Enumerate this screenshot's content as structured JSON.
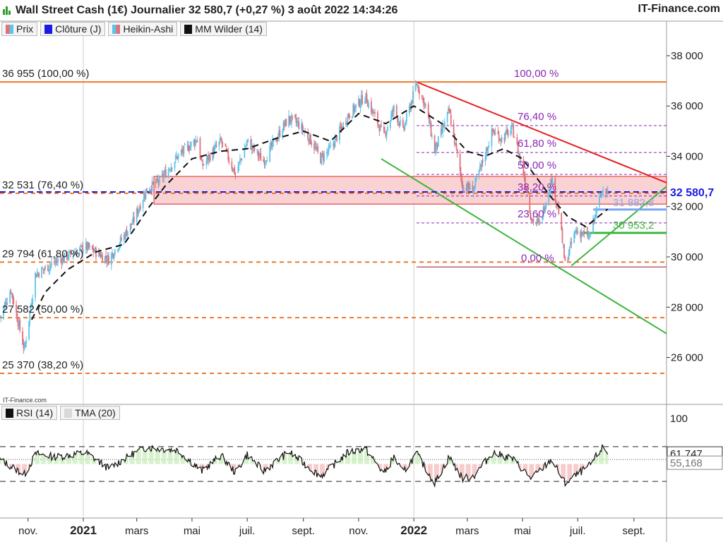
{
  "header": {
    "title": "Wall Street Cash (1€) Journalier 32 580,7 (+0,27 %) 3 août 2022 14:34:26",
    "brand": "IT-Finance.com",
    "small_brand": "IT-Finance.com"
  },
  "legend": [
    {
      "label": "Prix",
      "icon": "price-candles-icon"
    },
    {
      "label": "Clôture (J)",
      "icon": "close-line-icon"
    },
    {
      "label": "Heikin-Ashi",
      "icon": "heikin-ashi-icon"
    },
    {
      "label": "MM Wilder (14)",
      "icon": "wilder-ma-icon"
    }
  ],
  "indicator_legend": [
    {
      "label": "RSI (14)",
      "icon": "rsi-icon"
    },
    {
      "label": "TMA (20)",
      "icon": "tma-icon"
    }
  ],
  "colors": {
    "up": "#5ec3e8",
    "down": "#e0707a",
    "close_line": "#1a1ae6",
    "fib_orange": "#f07828",
    "resistance_red": "#e62020",
    "support_green": "#3cb43c",
    "fib_purple": "#8c28b4",
    "zone_fill": "#f8c8c8"
  },
  "chart_data": [
    {
      "type": "candlestick",
      "title": "Wall Street Cash (1€) Journalier",
      "ylim": [
        24500,
        38700
      ],
      "y_ticks": [
        26000,
        28000,
        30000,
        32000,
        34000,
        36000,
        38000
      ],
      "y_tick_labels": [
        "26 000",
        "28 000",
        "30 000",
        "32 000",
        "34 000",
        "36 000",
        "38 000"
      ],
      "x_labels": [
        "nov.",
        "2021",
        "mars",
        "mai",
        "juil.",
        "sept.",
        "nov.",
        "2022",
        "mars",
        "mai",
        "juil.",
        "sept."
      ],
      "x_label_dates": [
        "2020-11-01",
        "2021-01-01",
        "2021-03-01",
        "2021-05-01",
        "2021-07-01",
        "2021-09-01",
        "2021-11-01",
        "2022-01-01",
        "2022-03-01",
        "2022-05-01",
        "2022-07-01",
        "2022-09-01"
      ],
      "x_range": [
        "2020-10-01",
        "2022-10-07"
      ],
      "last_price": 32580.7,
      "last_price_label": "32 580,7",
      "price_path": [
        [
          "2020-10-01",
          27600
        ],
        [
          "2020-10-13",
          28700
        ],
        [
          "2020-10-28",
          26300
        ],
        [
          "2020-11-09",
          29300
        ],
        [
          "2020-12-01",
          29800
        ],
        [
          "2021-01-04",
          30400
        ],
        [
          "2021-01-29",
          29900
        ],
        [
          "2021-02-25",
          31400
        ],
        [
          "2021-03-12",
          32700
        ],
        [
          "2021-03-26",
          33000
        ],
        [
          "2021-04-15",
          34000
        ],
        [
          "2021-05-07",
          34700
        ],
        [
          "2021-05-12",
          33600
        ],
        [
          "2021-06-02",
          34600
        ],
        [
          "2021-06-18",
          33300
        ],
        [
          "2021-07-01",
          34600
        ],
        [
          "2021-07-19",
          33800
        ],
        [
          "2021-08-10",
          35200
        ],
        [
          "2021-08-16",
          35500
        ],
        [
          "2021-08-26",
          35300
        ],
        [
          "2021-09-10",
          34600
        ],
        [
          "2021-09-20",
          33900
        ],
        [
          "2021-10-01",
          34300
        ],
        [
          "2021-10-20",
          35600
        ],
        [
          "2021-11-08",
          36400
        ],
        [
          "2021-11-29",
          34800
        ],
        [
          "2021-12-10",
          35900
        ],
        [
          "2021-12-20",
          35000
        ],
        [
          "2022-01-04",
          36900
        ],
        [
          "2022-01-15",
          35900
        ],
        [
          "2022-01-24",
          34200
        ],
        [
          "2022-02-09",
          35800
        ],
        [
          "2022-02-24",
          32800
        ],
        [
          "2022-03-08",
          32700
        ],
        [
          "2022-03-29",
          35000
        ],
        [
          "2022-04-08",
          34700
        ],
        [
          "2022-04-20",
          35100
        ],
        [
          "2022-05-03",
          33200
        ],
        [
          "2022-05-11",
          31500
        ],
        [
          "2022-05-20",
          31300
        ],
        [
          "2022-06-02",
          33100
        ],
        [
          "2022-06-10",
          31800
        ],
        [
          "2022-06-17",
          29700
        ],
        [
          "2022-06-28",
          31000
        ],
        [
          "2022-07-01",
          31000
        ],
        [
          "2022-07-14",
          30800
        ],
        [
          "2022-07-29",
          32800
        ],
        [
          "2022-08-03",
          32580
        ]
      ],
      "wilder_ma_path": [
        [
          "2020-11-05",
          27500
        ],
        [
          "2020-11-20",
          28600
        ],
        [
          "2020-12-15",
          29500
        ],
        [
          "2021-01-15",
          30200
        ],
        [
          "2021-02-15",
          30500
        ],
        [
          "2021-03-15",
          32000
        ],
        [
          "2021-04-01",
          32800
        ],
        [
          "2021-05-01",
          33900
        ],
        [
          "2021-06-01",
          34200
        ],
        [
          "2021-07-01",
          34300
        ],
        [
          "2021-08-01",
          34700
        ],
        [
          "2021-09-01",
          35000
        ],
        [
          "2021-10-01",
          34600
        ],
        [
          "2021-11-01",
          35700
        ],
        [
          "2021-12-01",
          35300
        ],
        [
          "2022-01-01",
          36000
        ],
        [
          "2022-02-01",
          35300
        ],
        [
          "2022-03-01",
          34200
        ],
        [
          "2022-03-20",
          34000
        ],
        [
          "2022-04-10",
          34300
        ],
        [
          "2022-05-01",
          33900
        ],
        [
          "2022-06-01",
          32400
        ],
        [
          "2022-06-20",
          31600
        ],
        [
          "2022-07-10",
          31200
        ],
        [
          "2022-08-03",
          31900
        ]
      ],
      "fibonacci_levels": [
        {
          "value": 36955,
          "label": "36 955 (100,00 %)",
          "pct_label": "100,00 %"
        },
        {
          "value": 32531,
          "label": "32 531 (76,40 %)",
          "pct_label": "76,40 %"
        },
        {
          "value": 29794,
          "label": "29 794 (61,80 %)",
          "pct_label": "61,80 %"
        },
        {
          "value": 27582,
          "label": "27 582 (50,00 %)",
          "pct_label": "50,00 %"
        },
        {
          "value": 25370,
          "label": "25 370 (38,20 %)",
          "pct_label": "38,20 %"
        }
      ],
      "retracement_levels": [
        {
          "pct": "100,00 %",
          "value": 36955
        },
        {
          "pct": "76,40 %",
          "value": 35220
        },
        {
          "pct": "61,80 %",
          "value": 34150
        },
        {
          "pct": "50,00 %",
          "value": 33280
        },
        {
          "pct": "38,20 %",
          "value": 32420
        },
        {
          "pct": "23,60 %",
          "value": 31350
        },
        {
          "pct": "0,00 %",
          "value": 29600
        }
      ],
      "resistance_zone": {
        "from": 32100,
        "to": 33200,
        "start": "2021-03-20"
      },
      "levels": [
        {
          "value": 31882.8,
          "label": "31 882,8"
        },
        {
          "value": 30953.2,
          "label": "30 953,2"
        }
      ],
      "trendlines": [
        {
          "name": "resistance",
          "from": [
            "2022-01-04",
            36955
          ],
          "to": [
            "2022-10-07",
            32950
          ]
        },
        {
          "name": "support-lower",
          "from": [
            "2021-11-26",
            33900
          ],
          "to": [
            "2022-10-07",
            26950
          ]
        },
        {
          "name": "support-upper",
          "from": [
            "2022-06-24",
            29650
          ],
          "to": [
            "2022-10-07",
            32800
          ]
        }
      ]
    },
    {
      "type": "line",
      "title": "RSI (14)",
      "ylim": [
        0,
        100
      ],
      "y_ticks": [
        100
      ],
      "y_tick_labels": [
        "100"
      ],
      "bands": [
        70,
        30
      ],
      "rsi_last": 61.747,
      "rsi_last_label": "61,747",
      "tma_last": 55.168,
      "tma_last_label": "55,168",
      "rsi_path": [
        [
          "2020-10-01",
          55
        ],
        [
          "2020-10-28",
          38
        ],
        [
          "2020-11-10",
          62
        ],
        [
          "2020-12-01",
          58
        ],
        [
          "2021-01-04",
          63
        ],
        [
          "2021-01-29",
          45
        ],
        [
          "2021-02-25",
          62
        ],
        [
          "2021-03-12",
          69
        ],
        [
          "2021-04-15",
          66
        ],
        [
          "2021-05-12",
          42
        ],
        [
          "2021-06-02",
          60
        ],
        [
          "2021-06-18",
          40
        ],
        [
          "2021-07-01",
          61
        ],
        [
          "2021-07-19",
          42
        ],
        [
          "2021-08-16",
          64
        ],
        [
          "2021-09-20",
          36
        ],
        [
          "2021-10-20",
          63
        ],
        [
          "2021-11-08",
          68
        ],
        [
          "2021-11-29",
          39
        ],
        [
          "2021-12-10",
          58
        ],
        [
          "2021-12-20",
          40
        ],
        [
          "2022-01-04",
          62
        ],
        [
          "2022-01-24",
          28
        ],
        [
          "2022-02-09",
          58
        ],
        [
          "2022-02-24",
          33
        ],
        [
          "2022-03-08",
          36
        ],
        [
          "2022-03-29",
          63
        ],
        [
          "2022-04-20",
          56
        ],
        [
          "2022-05-11",
          33
        ],
        [
          "2022-06-02",
          55
        ],
        [
          "2022-06-17",
          28
        ],
        [
          "2022-07-14",
          48
        ],
        [
          "2022-07-29",
          70
        ],
        [
          "2022-08-03",
          62
        ]
      ]
    }
  ]
}
